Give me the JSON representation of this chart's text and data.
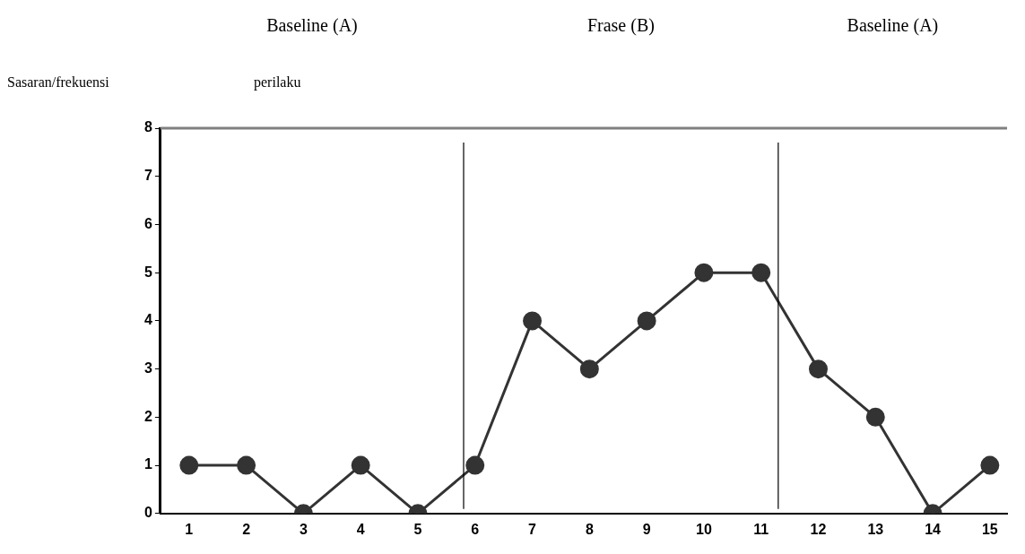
{
  "chart_data": {
    "type": "line",
    "ylabel": "Sasaran/frekuensi perilaku",
    "annotations": [
      "Baseline (A)",
      "Frase (B)",
      "Baseline (A)"
    ],
    "x": [
      1,
      2,
      3,
      4,
      5,
      6,
      7,
      8,
      9,
      10,
      11,
      12,
      13,
      14,
      15
    ],
    "series": [
      {
        "color": "#333333",
        "values": [
          1,
          1,
          0,
          1,
          0,
          1,
          4,
          3,
          4,
          5,
          5,
          3,
          2,
          0,
          1
        ]
      }
    ],
    "xlim": [
      0.5,
      15.3
    ],
    "xticks": [
      1,
      2,
      3,
      4,
      5,
      6,
      7,
      8,
      9,
      10,
      11,
      12,
      13,
      14,
      15
    ],
    "ylim": [
      0,
      8
    ],
    "yticks": [
      0,
      1,
      2,
      3,
      4,
      5,
      6,
      7,
      8
    ],
    "ref_lines": [
      {
        "axis": "x",
        "value": 5.8,
        "color": "#000000"
      },
      {
        "axis": "x",
        "value": 11.3,
        "color": "#000000"
      }
    ],
    "marker": "circle",
    "line_style": "solid",
    "grid": false,
    "legend": false
  }
}
